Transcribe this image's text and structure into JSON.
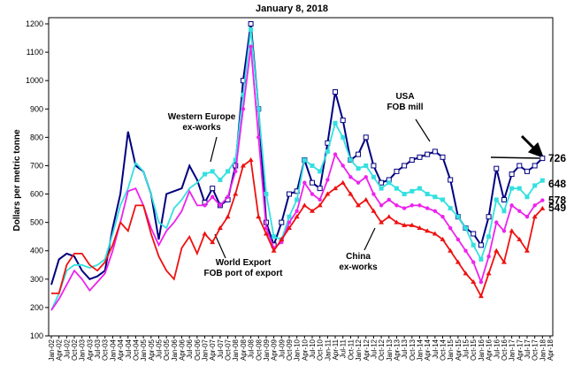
{
  "chart_data": {
    "type": "line",
    "title": "January 8, 2018",
    "y_label": "Dollars per metric tonne",
    "categories": [
      "Jan-02",
      "Apr-02",
      "Jul-02",
      "Oct-02",
      "Jan-03",
      "Apr-03",
      "Jul-03",
      "Oct-03",
      "Jan-04",
      "Apr-04",
      "Jul-04",
      "Oct-04",
      "Jan-05",
      "Apr-05",
      "Jul-05",
      "Oct-05",
      "Jan-06",
      "Apr-06",
      "Jul-06",
      "Oct-06",
      "Jan-07",
      "Apr-07",
      "Jul-07",
      "Oct-07",
      "Jan-08",
      "Apr-08",
      "Jul-08",
      "Oct-08",
      "Jan-09",
      "Apr-09",
      "Jul-09",
      "Oct-09",
      "Jan-10",
      "Apr-10",
      "Jul-10",
      "Oct-10",
      "Jan-11",
      "Apr-11",
      "Jul-11",
      "Oct-11",
      "Jan-12",
      "Apr-12",
      "Jul-12",
      "Oct-12",
      "Jan-13",
      "Apr-13",
      "Jul-13",
      "Oct-13",
      "Jan-14",
      "Apr-14",
      "Jul-14",
      "Oct-14",
      "Jan-15",
      "Apr-15",
      "Jul-15",
      "Oct-15",
      "Jan-16",
      "Apr-16",
      "Jul-16",
      "Oct-16",
      "Jan-17",
      "Apr-17",
      "Jul-17",
      "Oct-17",
      "Jan-18",
      "Apr-18"
    ],
    "ylim": [
      100,
      1200
    ],
    "yticks": [
      100,
      200,
      300,
      400,
      500,
      600,
      700,
      800,
      900,
      1000,
      1100,
      1200
    ],
    "grid": false,
    "series": [
      {
        "name": [
          "USA",
          "FOB mill"
        ],
        "color": "#000080",
        "marker": "open-square",
        "values": [
          280,
          370,
          390,
          380,
          330,
          300,
          310,
          330,
          480,
          600,
          820,
          700,
          680,
          600,
          440,
          600,
          610,
          620,
          700,
          650,
          570,
          620,
          560,
          580,
          700,
          1000,
          1200,
          900,
          500,
          420,
          500,
          600,
          610,
          720,
          640,
          620,
          780,
          960,
          860,
          720,
          740,
          800,
          700,
          640,
          650,
          680,
          700,
          720,
          730,
          740,
          750,
          730,
          650,
          520,
          480,
          460,
          420,
          520,
          690,
          580,
          670,
          700,
          680,
          700,
          726,
          null
        ]
      },
      {
        "name": [
          "Western Europe",
          "ex-works"
        ],
        "color": "#33e0e0",
        "marker": "square",
        "values": [
          190,
          250,
          330,
          350,
          350,
          340,
          350,
          370,
          460,
          560,
          620,
          710,
          680,
          600,
          500,
          480,
          550,
          580,
          620,
          640,
          670,
          680,
          650,
          680,
          720,
          950,
          1180,
          900,
          600,
          450,
          440,
          520,
          580,
          720,
          700,
          680,
          750,
          850,
          800,
          720,
          690,
          700,
          660,
          620,
          640,
          620,
          600,
          610,
          620,
          600,
          590,
          580,
          550,
          520,
          480,
          420,
          370,
          450,
          580,
          540,
          620,
          620,
          590,
          630,
          648,
          null
        ]
      },
      {
        "name": [
          "World Export",
          "FOB port of export"
        ],
        "color": "#ee22ee",
        "marker": "circle",
        "values": [
          190,
          230,
          280,
          330,
          300,
          260,
          290,
          320,
          400,
          500,
          610,
          620,
          560,
          480,
          420,
          470,
          500,
          540,
          610,
          560,
          560,
          590,
          560,
          590,
          680,
          900,
          1120,
          800,
          480,
          410,
          430,
          500,
          540,
          640,
          600,
          580,
          650,
          740,
          700,
          660,
          640,
          660,
          600,
          560,
          580,
          560,
          550,
          560,
          560,
          550,
          540,
          520,
          480,
          440,
          400,
          360,
          290,
          380,
          500,
          470,
          560,
          540,
          520,
          560,
          578,
          null
        ]
      },
      {
        "name": [
          "China",
          "ex-works"
        ],
        "color": "#ee1111",
        "marker": "triangle",
        "values": [
          250,
          250,
          350,
          390,
          390,
          350,
          330,
          360,
          420,
          500,
          470,
          560,
          560,
          460,
          380,
          330,
          300,
          410,
          450,
          390,
          460,
          430,
          480,
          520,
          600,
          700,
          720,
          520,
          460,
          400,
          440,
          480,
          520,
          560,
          540,
          560,
          600,
          620,
          640,
          600,
          560,
          580,
          540,
          500,
          520,
          500,
          490,
          490,
          480,
          470,
          460,
          440,
          400,
          360,
          320,
          290,
          240,
          320,
          400,
          360,
          470,
          440,
          400,
          520,
          549,
          null
        ]
      }
    ]
  }
}
